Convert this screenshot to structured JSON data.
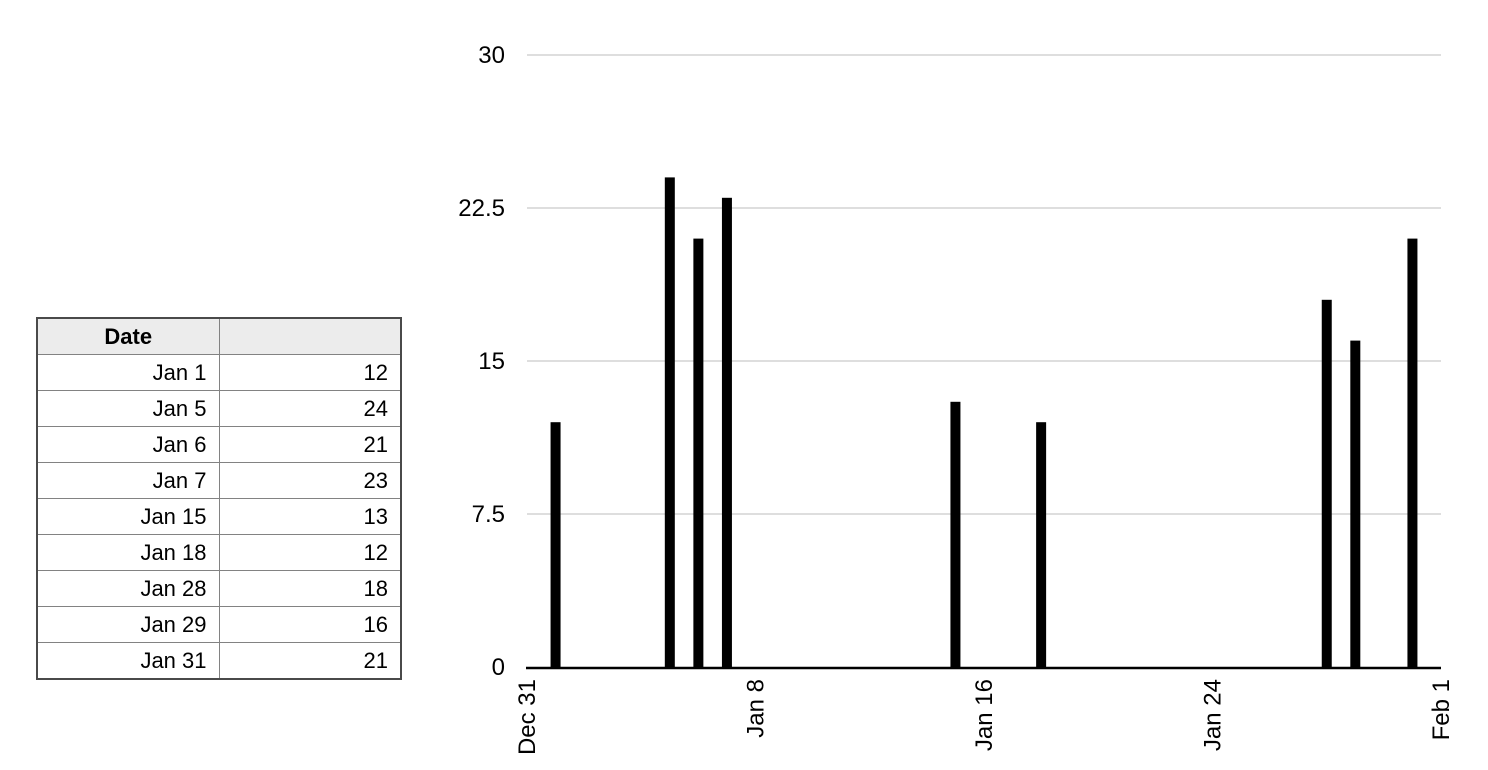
{
  "table": {
    "header": {
      "date": "Date",
      "value": ""
    },
    "rows": [
      {
        "date": "Jan 1",
        "value": "12"
      },
      {
        "date": "Jan 5",
        "value": "24"
      },
      {
        "date": "Jan 6",
        "value": "21"
      },
      {
        "date": "Jan 7",
        "value": "23"
      },
      {
        "date": "Jan 15",
        "value": "13"
      },
      {
        "date": "Jan 18",
        "value": "12"
      },
      {
        "date": "Jan 28",
        "value": "18"
      },
      {
        "date": "Jan 29",
        "value": "16"
      },
      {
        "date": "Jan 31",
        "value": "21"
      }
    ]
  },
  "chart_data": {
    "type": "bar",
    "title": "",
    "xlabel": "",
    "ylabel": "",
    "grid": true,
    "legend": false,
    "x_axis": {
      "range_days": [
        0,
        32
      ],
      "tick_days": [
        0,
        8,
        16,
        24,
        32
      ],
      "tick_labels": [
        "Dec 31",
        "Jan 8",
        "Jan 16",
        "Jan 24",
        "Feb 1"
      ]
    },
    "y_axis": {
      "range": [
        0,
        30
      ],
      "ticks": [
        0,
        7.5,
        15,
        22.5,
        30
      ],
      "tick_labels": [
        "0",
        "7.5",
        "15",
        "22.5",
        "30"
      ]
    },
    "series": [
      {
        "name": "",
        "points": [
          {
            "date": "Jan 1",
            "day": 1,
            "value": 12
          },
          {
            "date": "Jan 5",
            "day": 5,
            "value": 24
          },
          {
            "date": "Jan 6",
            "day": 6,
            "value": 21
          },
          {
            "date": "Jan 7",
            "day": 7,
            "value": 23
          },
          {
            "date": "Jan 15",
            "day": 15,
            "value": 13
          },
          {
            "date": "Jan 18",
            "day": 18,
            "value": 12
          },
          {
            "date": "Jan 28",
            "day": 28,
            "value": 18
          },
          {
            "date": "Jan 29",
            "day": 29,
            "value": 16
          },
          {
            "date": "Jan 31",
            "day": 31,
            "value": 21
          }
        ]
      }
    ],
    "colors": {
      "bar": "#000000",
      "grid": "#d4d4d4",
      "axis": "#000000",
      "label": "#000000"
    }
  }
}
